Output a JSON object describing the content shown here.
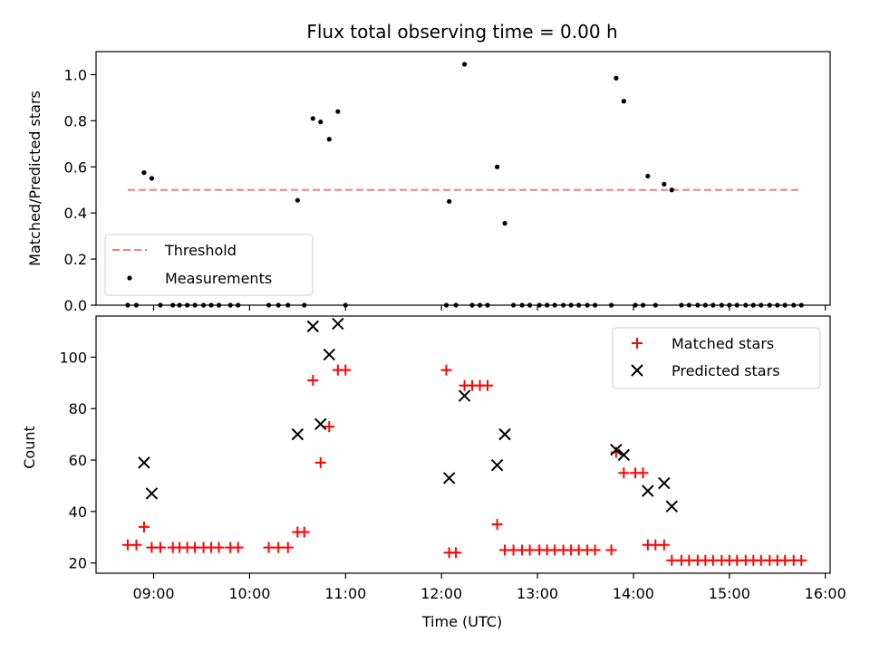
{
  "chart_data": [
    {
      "type": "scatter",
      "title": "Flux total observing time = 0.00 h",
      "xlabel": "",
      "ylabel": "Matched/Predicted stars",
      "xlim": [
        8.4,
        16.05
      ],
      "ylim": [
        0,
        1.1
      ],
      "yticks": [
        "0.0",
        "0.2",
        "0.4",
        "0.6",
        "0.8",
        "1.0"
      ],
      "grid": false,
      "legend_position": "lower-left",
      "threshold": {
        "name": "Threshold",
        "y": 0.5,
        "x_range": [
          8.73,
          15.75
        ],
        "color": "#f08080"
      },
      "series": [
        {
          "name": "Measurements",
          "marker": "dot",
          "color": "#000000",
          "points": [
            [
              8.73,
              0.0
            ],
            [
              8.82,
              0.0
            ],
            [
              8.9,
              0.575
            ],
            [
              8.98,
              0.55
            ],
            [
              9.07,
              0.0
            ],
            [
              9.2,
              0.0
            ],
            [
              9.27,
              0.0
            ],
            [
              9.35,
              0.0
            ],
            [
              9.43,
              0.0
            ],
            [
              9.52,
              0.0
            ],
            [
              9.6,
              0.0
            ],
            [
              9.68,
              0.0
            ],
            [
              9.8,
              0.0
            ],
            [
              9.88,
              0.0
            ],
            [
              10.2,
              0.0
            ],
            [
              10.3,
              0.0
            ],
            [
              10.4,
              0.0
            ],
            [
              10.5,
              0.455
            ],
            [
              10.57,
              0.0
            ],
            [
              10.66,
              0.81
            ],
            [
              10.74,
              0.795
            ],
            [
              10.83,
              0.72
            ],
            [
              10.92,
              0.84
            ],
            [
              11.0,
              0.0
            ],
            [
              12.05,
              0.0
            ],
            [
              12.08,
              0.45
            ],
            [
              12.15,
              0.0
            ],
            [
              12.24,
              1.045
            ],
            [
              12.32,
              0.0
            ],
            [
              12.4,
              0.0
            ],
            [
              12.48,
              0.0
            ],
            [
              12.58,
              0.6
            ],
            [
              12.66,
              0.355
            ],
            [
              12.75,
              0.0
            ],
            [
              12.84,
              0.0
            ],
            [
              12.92,
              0.0
            ],
            [
              13.02,
              0.0
            ],
            [
              13.1,
              0.0
            ],
            [
              13.18,
              0.0
            ],
            [
              13.27,
              0.0
            ],
            [
              13.35,
              0.0
            ],
            [
              13.43,
              0.0
            ],
            [
              13.52,
              0.0
            ],
            [
              13.6,
              0.0
            ],
            [
              13.77,
              0.0
            ],
            [
              13.82,
              0.985
            ],
            [
              13.9,
              0.885
            ],
            [
              14.02,
              0.0
            ],
            [
              14.1,
              0.0
            ],
            [
              14.15,
              0.56
            ],
            [
              14.23,
              0.0
            ],
            [
              14.32,
              0.525
            ],
            [
              14.4,
              0.5
            ],
            [
              14.5,
              0.0
            ],
            [
              14.58,
              0.0
            ],
            [
              14.67,
              0.0
            ],
            [
              14.75,
              0.0
            ],
            [
              14.83,
              0.0
            ],
            [
              14.92,
              0.0
            ],
            [
              15.0,
              0.0
            ],
            [
              15.08,
              0.0
            ],
            [
              15.17,
              0.0
            ],
            [
              15.25,
              0.0
            ],
            [
              15.33,
              0.0
            ],
            [
              15.42,
              0.0
            ],
            [
              15.5,
              0.0
            ],
            [
              15.58,
              0.0
            ],
            [
              15.67,
              0.0
            ],
            [
              15.75,
              0.0
            ]
          ]
        }
      ]
    },
    {
      "type": "scatter",
      "title": "",
      "xlabel": "Time (UTC)",
      "ylabel": "Count",
      "xlim": [
        8.4,
        16.05
      ],
      "ylim": [
        16,
        116
      ],
      "xticks": [
        {
          "v": 9,
          "label": "09:00"
        },
        {
          "v": 10,
          "label": "10:00"
        },
        {
          "v": 11,
          "label": "11:00"
        },
        {
          "v": 12,
          "label": "12:00"
        },
        {
          "v": 13,
          "label": "13:00"
        },
        {
          "v": 14,
          "label": "14:00"
        },
        {
          "v": 15,
          "label": "15:00"
        },
        {
          "v": 16,
          "label": "16:00"
        }
      ],
      "yticks": [
        "20",
        "40",
        "60",
        "80",
        "100"
      ],
      "grid": false,
      "legend_position": "upper-right",
      "series": [
        {
          "name": "Matched stars",
          "marker": "plus",
          "color": "#ff0000",
          "points": [
            [
              8.73,
              27
            ],
            [
              8.82,
              27
            ],
            [
              8.9,
              34
            ],
            [
              8.98,
              26
            ],
            [
              9.07,
              26
            ],
            [
              9.2,
              26
            ],
            [
              9.27,
              26
            ],
            [
              9.35,
              26
            ],
            [
              9.43,
              26
            ],
            [
              9.52,
              26
            ],
            [
              9.6,
              26
            ],
            [
              9.68,
              26
            ],
            [
              9.8,
              26
            ],
            [
              9.88,
              26
            ],
            [
              10.2,
              26
            ],
            [
              10.3,
              26
            ],
            [
              10.4,
              26
            ],
            [
              10.5,
              32
            ],
            [
              10.57,
              32
            ],
            [
              10.66,
              91
            ],
            [
              10.74,
              59
            ],
            [
              10.83,
              73
            ],
            [
              10.92,
              95
            ],
            [
              11.0,
              95
            ],
            [
              12.05,
              95
            ],
            [
              12.08,
              24
            ],
            [
              12.15,
              24
            ],
            [
              12.24,
              89
            ],
            [
              12.32,
              89
            ],
            [
              12.4,
              89
            ],
            [
              12.48,
              89
            ],
            [
              12.58,
              35
            ],
            [
              12.66,
              25
            ],
            [
              12.75,
              25
            ],
            [
              12.84,
              25
            ],
            [
              12.92,
              25
            ],
            [
              13.02,
              25
            ],
            [
              13.1,
              25
            ],
            [
              13.18,
              25
            ],
            [
              13.27,
              25
            ],
            [
              13.35,
              25
            ],
            [
              13.43,
              25
            ],
            [
              13.52,
              25
            ],
            [
              13.6,
              25
            ],
            [
              13.77,
              25
            ],
            [
              13.82,
              63
            ],
            [
              13.9,
              55
            ],
            [
              14.02,
              55
            ],
            [
              14.1,
              55
            ],
            [
              14.15,
              27
            ],
            [
              14.23,
              27
            ],
            [
              14.32,
              27
            ],
            [
              14.4,
              21
            ],
            [
              14.5,
              21
            ],
            [
              14.58,
              21
            ],
            [
              14.67,
              21
            ],
            [
              14.75,
              21
            ],
            [
              14.83,
              21
            ],
            [
              14.92,
              21
            ],
            [
              15.0,
              21
            ],
            [
              15.08,
              21
            ],
            [
              15.17,
              21
            ],
            [
              15.25,
              21
            ],
            [
              15.33,
              21
            ],
            [
              15.42,
              21
            ],
            [
              15.5,
              21
            ],
            [
              15.58,
              21
            ],
            [
              15.67,
              21
            ],
            [
              15.75,
              21
            ]
          ]
        },
        {
          "name": "Predicted stars",
          "marker": "x",
          "color": "#000000",
          "points": [
            [
              8.9,
              59
            ],
            [
              8.98,
              47
            ],
            [
              10.5,
              70
            ],
            [
              10.66,
              112
            ],
            [
              10.74,
              74
            ],
            [
              10.83,
              101
            ],
            [
              10.92,
              113
            ],
            [
              12.08,
              53
            ],
            [
              12.24,
              85
            ],
            [
              12.58,
              58
            ],
            [
              12.66,
              70
            ],
            [
              13.82,
              64
            ],
            [
              13.9,
              62
            ],
            [
              14.15,
              48
            ],
            [
              14.32,
              51
            ],
            [
              14.4,
              42
            ]
          ]
        }
      ]
    }
  ]
}
